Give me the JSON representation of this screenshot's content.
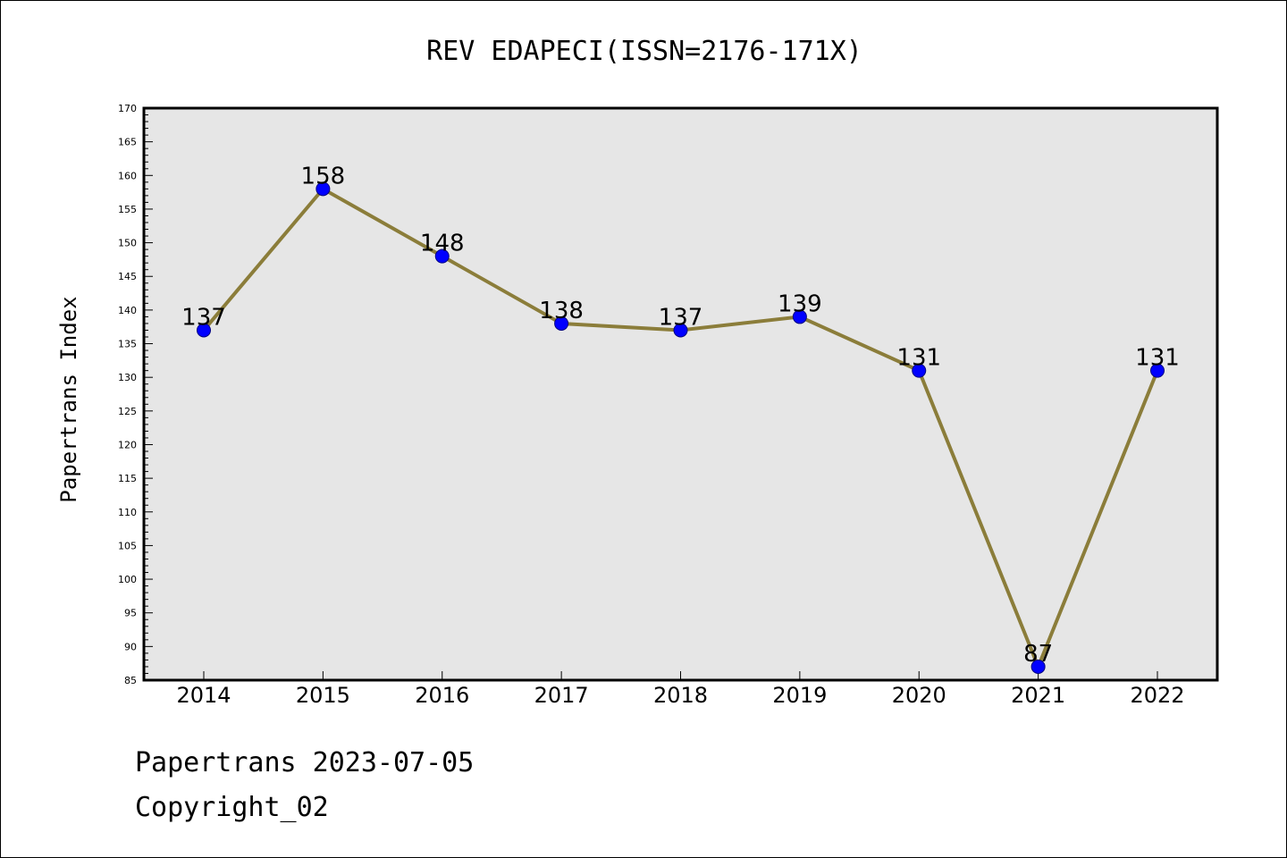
{
  "chart_data": {
    "type": "line",
    "title": "REV EDAPECI(ISSN=2176-171X)",
    "xlabel": "",
    "ylabel": "Papertrans Index",
    "categories": [
      "2014",
      "2015",
      "2016",
      "2017",
      "2018",
      "2019",
      "2020",
      "2021",
      "2022"
    ],
    "series": [
      {
        "values": [
          137,
          158,
          148,
          138,
          137,
          139,
          131,
          87,
          131
        ]
      }
    ],
    "ylim": [
      85,
      170
    ],
    "yticks": [
      85,
      90,
      95,
      100,
      105,
      110,
      115,
      120,
      125,
      130,
      135,
      140,
      145,
      150,
      155,
      160,
      165,
      170
    ],
    "grid": false,
    "data_labels": true,
    "colors": {
      "line": "#8b7d3a",
      "marker": "#0000ff",
      "plot_bg": "#e6e6e6"
    }
  },
  "footer": {
    "line1": "Papertrans 2023-07-05",
    "line2": "Copyright_02"
  }
}
